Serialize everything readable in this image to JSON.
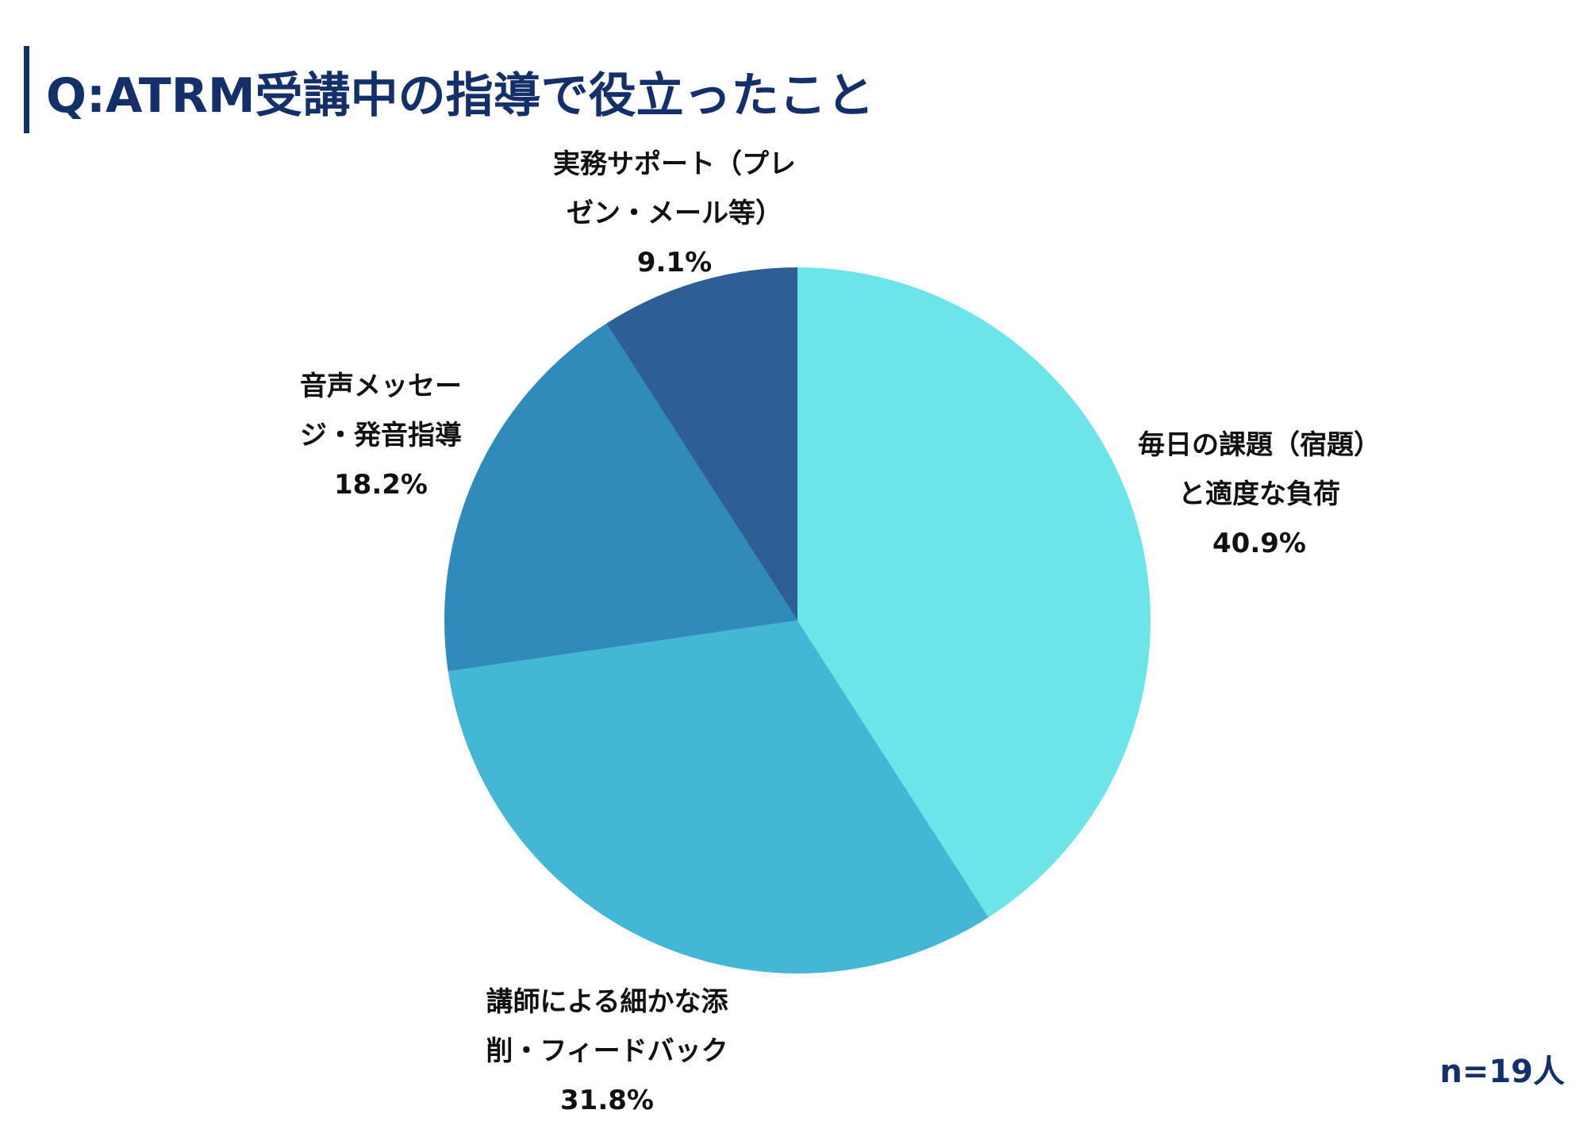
{
  "title": "Q:ATRM受講中の指導で役立ったこと",
  "note": "n=19人",
  "colors": {
    "title": "#14306a",
    "text": "#111111"
  },
  "chart_data": {
    "type": "pie",
    "title": "Q:ATRM受講中の指導で役立ったこと",
    "start_angle_deg": 0,
    "direction": "clockwise",
    "slices": [
      {
        "label_lines": [
          "毎日の課題（宿題）",
          "と適度な負荷"
        ],
        "percent_text": "40.9%",
        "value": 40.9,
        "color": "#6ce5e8"
      },
      {
        "label_lines": [
          "講師による細かな添",
          "削・フィードバック"
        ],
        "percent_text": "31.8%",
        "value": 31.8,
        "color": "#43b7d5"
      },
      {
        "label_lines": [
          "音声メッセー",
          "ジ・発音指導"
        ],
        "percent_text": "18.2%",
        "value": 18.2,
        "color": "#2e8bba"
      },
      {
        "label_lines": [
          "実務サポート（プレ",
          "ゼン・メール等）"
        ],
        "percent_text": "9.1%",
        "value": 9.1,
        "color": "#2e5e96"
      }
    ]
  }
}
